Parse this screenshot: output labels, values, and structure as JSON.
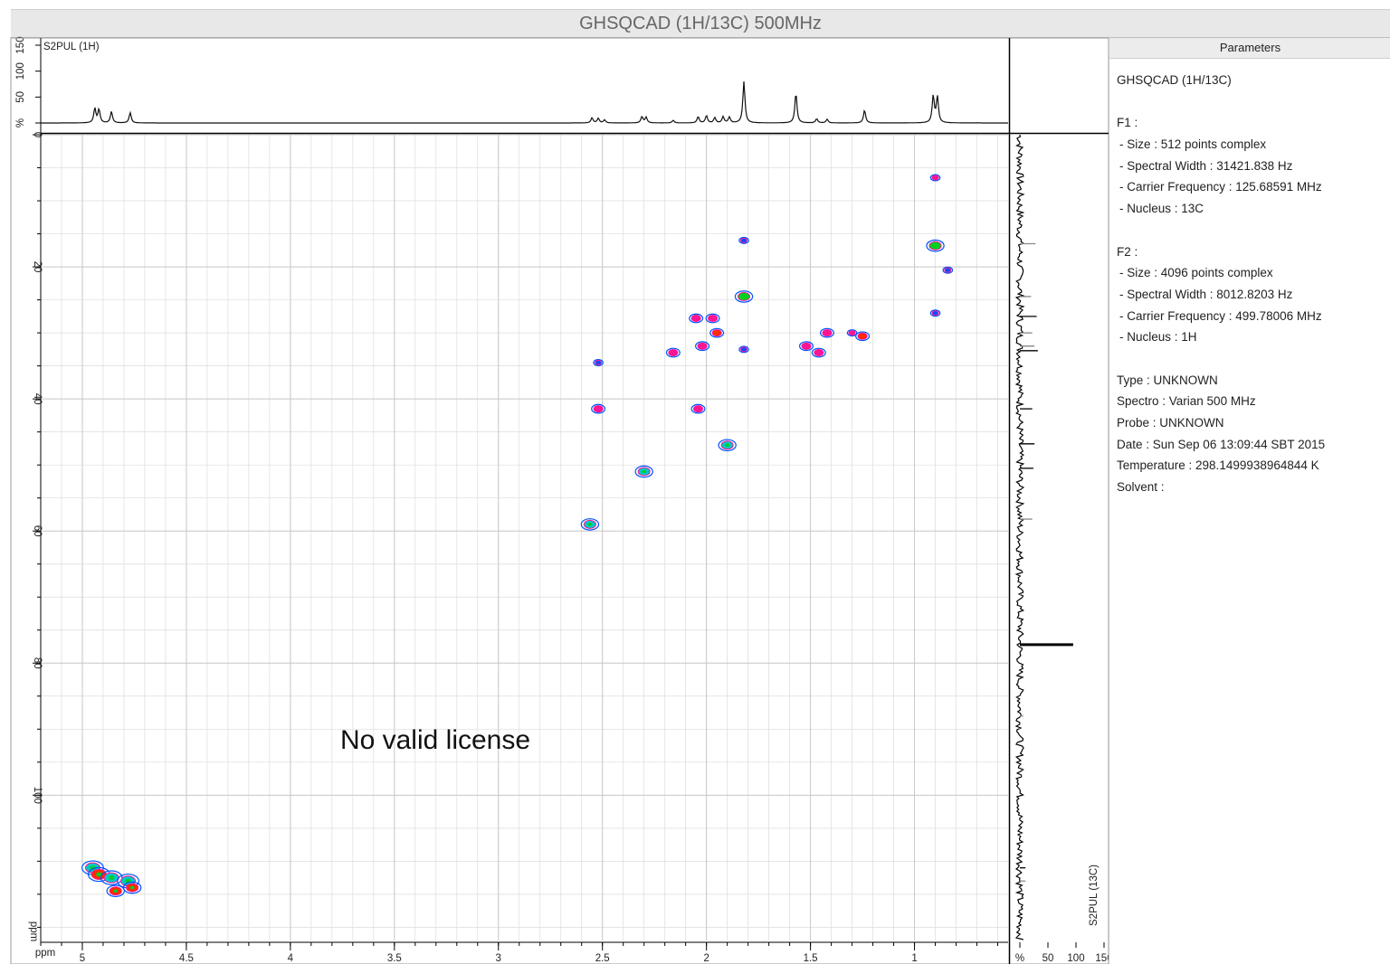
{
  "window_title": "GHSQCAD  (1H/13C)  500MHz",
  "watermark": "No valid license",
  "params": {
    "header": "Parameters",
    "lines": [
      {
        "text": "GHSQCAD  (1H/13C)",
        "kind": "head"
      },
      {
        "text": "F1 :",
        "kind": "gap"
      },
      {
        "text": " - Size : 512 points complex",
        "kind": "item"
      },
      {
        "text": " - Spectral Width : 31421.838 Hz",
        "kind": "item"
      },
      {
        "text": " - Carrier Frequency : 125.68591 MHz",
        "kind": "item"
      },
      {
        "text": " - Nucleus : 13C",
        "kind": "item"
      },
      {
        "text": "F2 :",
        "kind": "gap"
      },
      {
        "text": " - Size : 4096 points complex",
        "kind": "item"
      },
      {
        "text": " - Spectral Width : 8012.8203 Hz",
        "kind": "item"
      },
      {
        "text": " - Carrier Frequency : 499.78006 MHz",
        "kind": "item"
      },
      {
        "text": " - Nucleus : 1H",
        "kind": "item"
      },
      {
        "text": "Type : UNKNOWN",
        "kind": "gap"
      },
      {
        "text": "Spectro : Varian 500 MHz",
        "kind": "plain"
      },
      {
        "text": "Probe : UNKNOWN",
        "kind": "plain"
      },
      {
        "text": "Date : Sun Sep 06 13:09:44 SBT 2015",
        "kind": "plain"
      },
      {
        "text": "Temperature : 298.1499938964844 K",
        "kind": "plain"
      },
      {
        "text": "Solvent :",
        "kind": "plain"
      }
    ]
  },
  "colors": {
    "contour_positive": "#ff1493",
    "contour_negative": "#0050ff",
    "contour_mid": "#00c8c8",
    "contour_core": "#00d020",
    "spectrum": "#111111",
    "grid": "#dcdcdc"
  },
  "chart_data": {
    "type": "scatter",
    "subtype": "2D NMR HSQC contour plot",
    "title": "GHSQCAD  (1H/13C)  500MHz",
    "xlabel": "ppm",
    "ylabel": "ppm",
    "x_axis": {
      "range": [
        5.2,
        0.55
      ],
      "reversed": true,
      "ticks": [
        5,
        4.5,
        4,
        3.5,
        3,
        2.5,
        2,
        1.5,
        1
      ],
      "tick_labels": [
        "5",
        "4.5",
        "4",
        "3.5",
        "3",
        "2.5",
        "2",
        "1.5",
        "1"
      ]
    },
    "y_axis": {
      "range": [
        0,
        122
      ],
      "reversed": true,
      "ticks": [
        0,
        20,
        40,
        60,
        80,
        100
      ],
      "tick_labels": [
        "0",
        "20",
        "40",
        "60",
        "80",
        "100"
      ]
    },
    "grid": true,
    "top_projection": {
      "label": "S2PUL  (1H)",
      "axis_ticks": [
        0,
        50,
        100,
        150
      ],
      "axis_tick_labels": [
        "%",
        "50",
        "100",
        "150"
      ],
      "peaks": [
        {
          "x": 4.94,
          "h": 28
        },
        {
          "x": 4.92,
          "h": 26
        },
        {
          "x": 4.86,
          "h": 22
        },
        {
          "x": 4.77,
          "h": 20
        },
        {
          "x": 2.55,
          "h": 10
        },
        {
          "x": 2.52,
          "h": 9
        },
        {
          "x": 2.49,
          "h": 6
        },
        {
          "x": 2.31,
          "h": 12
        },
        {
          "x": 2.29,
          "h": 11
        },
        {
          "x": 2.16,
          "h": 5
        },
        {
          "x": 2.04,
          "h": 12
        },
        {
          "x": 2.0,
          "h": 14
        },
        {
          "x": 1.96,
          "h": 10
        },
        {
          "x": 1.92,
          "h": 12
        },
        {
          "x": 1.89,
          "h": 11
        },
        {
          "x": 1.82,
          "h": 80
        },
        {
          "x": 1.57,
          "h": 58
        },
        {
          "x": 1.47,
          "h": 8
        },
        {
          "x": 1.42,
          "h": 7
        },
        {
          "x": 1.24,
          "h": 25
        },
        {
          "x": 0.91,
          "h": 52
        },
        {
          "x": 0.89,
          "h": 50
        }
      ]
    },
    "right_projection": {
      "label": "S2PUL  (13C)",
      "axis_ticks": [
        0,
        50,
        100,
        150
      ],
      "axis_tick_labels": [
        "%",
        "50",
        "100",
        "150"
      ],
      "peaks": [
        {
          "y": 16.5,
          "h": 28,
          "shade": "gray"
        },
        {
          "y": 24.5,
          "h": 20,
          "shade": "gray"
        },
        {
          "y": 27.5,
          "h": 30,
          "shade": "black"
        },
        {
          "y": 30.0,
          "h": 22,
          "shade": "gray"
        },
        {
          "y": 32.0,
          "h": 26,
          "shade": "gray"
        },
        {
          "y": 32.7,
          "h": 32,
          "shade": "black"
        },
        {
          "y": 41.5,
          "h": 22,
          "shade": "black"
        },
        {
          "y": 46.8,
          "h": 26,
          "shade": "black"
        },
        {
          "y": 50.5,
          "h": 24,
          "shade": "black"
        },
        {
          "y": 58.2,
          "h": 22,
          "shade": "gray"
        },
        {
          "y": 77.2,
          "h": 95,
          "shade": "black"
        },
        {
          "y": 88.0,
          "h": 6,
          "shade": "gray"
        },
        {
          "y": 111.0,
          "h": 10,
          "shade": "black"
        },
        {
          "y": 113.0,
          "h": 10,
          "shade": "gray"
        }
      ]
    },
    "points": [
      {
        "x": 0.9,
        "y": 6.5,
        "v": 1,
        "c": "p"
      },
      {
        "x": 0.9,
        "y": 16.8,
        "v": 3,
        "c": "g"
      },
      {
        "x": 0.9,
        "y": 27.0,
        "v": 1,
        "c": "b"
      },
      {
        "x": 0.84,
        "y": 20.5,
        "v": 1,
        "c": "b"
      },
      {
        "x": 1.82,
        "y": 16.0,
        "v": 1,
        "c": "b"
      },
      {
        "x": 1.82,
        "y": 24.5,
        "v": 3,
        "c": "g"
      },
      {
        "x": 1.82,
        "y": 32.5,
        "v": 1,
        "c": "b"
      },
      {
        "x": 1.95,
        "y": 30.0,
        "v": 2,
        "c": "r"
      },
      {
        "x": 2.05,
        "y": 27.8,
        "v": 2,
        "c": "p"
      },
      {
        "x": 1.97,
        "y": 27.8,
        "v": 2,
        "c": "p"
      },
      {
        "x": 2.02,
        "y": 32.0,
        "v": 2,
        "c": "p"
      },
      {
        "x": 2.16,
        "y": 33.0,
        "v": 2,
        "c": "p"
      },
      {
        "x": 1.52,
        "y": 32.0,
        "v": 2,
        "c": "p"
      },
      {
        "x": 1.46,
        "y": 33.0,
        "v": 2,
        "c": "p"
      },
      {
        "x": 1.42,
        "y": 30.0,
        "v": 2,
        "c": "p"
      },
      {
        "x": 1.3,
        "y": 30.0,
        "v": 1,
        "c": "p"
      },
      {
        "x": 1.25,
        "y": 30.5,
        "v": 2,
        "c": "r"
      },
      {
        "x": 2.04,
        "y": 41.5,
        "v": 2,
        "c": "p"
      },
      {
        "x": 2.52,
        "y": 41.5,
        "v": 2,
        "c": "p"
      },
      {
        "x": 2.52,
        "y": 34.5,
        "v": 1,
        "c": "b"
      },
      {
        "x": 1.9,
        "y": 47.0,
        "v": 3,
        "c": "c"
      },
      {
        "x": 2.3,
        "y": 51.0,
        "v": 3,
        "c": "c"
      },
      {
        "x": 2.56,
        "y": 59.0,
        "v": 3,
        "c": "c"
      },
      {
        "x": 4.95,
        "y": 111.0,
        "v": 4,
        "c": "c"
      },
      {
        "x": 4.92,
        "y": 112.0,
        "v": 4,
        "c": "r"
      },
      {
        "x": 4.86,
        "y": 112.5,
        "v": 4,
        "c": "c"
      },
      {
        "x": 4.84,
        "y": 114.5,
        "v": 3,
        "c": "r"
      },
      {
        "x": 4.78,
        "y": 113.0,
        "v": 4,
        "c": "c"
      },
      {
        "x": 4.76,
        "y": 114.0,
        "v": 3,
        "c": "r"
      }
    ]
  }
}
